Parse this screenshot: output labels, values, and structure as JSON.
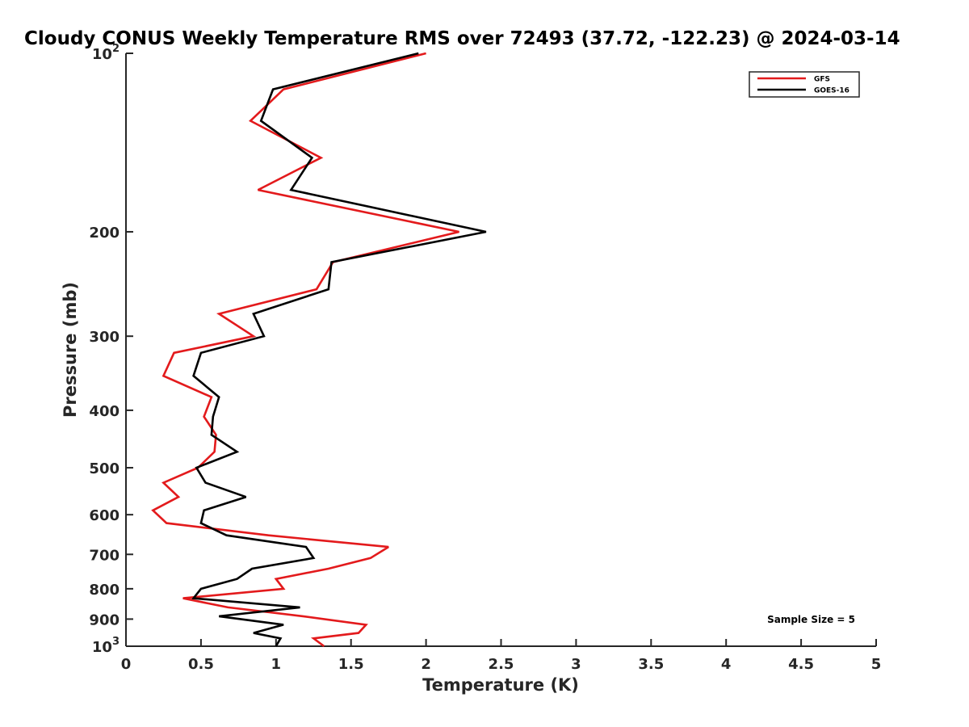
{
  "chart_data": {
    "type": "line",
    "title": "Cloudy CONUS Weekly Temperature RMS over 72493 (37.72, -122.23) @ 2024-03-14",
    "xlabel": "Temperature (K)",
    "ylabel": "Pressure (mb)",
    "xlim": [
      0,
      5
    ],
    "ylim": [
      100,
      1000
    ],
    "y_scale": "log",
    "y_reversed": true,
    "grid": false,
    "legend_position": "top-right",
    "x_ticks": [
      0,
      0.5,
      1,
      1.5,
      2,
      2.5,
      3,
      3.5,
      4,
      4.5,
      5
    ],
    "x_tick_labels": [
      "0",
      "0.5",
      "1",
      "1.5",
      "2",
      "2.5",
      "3",
      "3.5",
      "4",
      "4.5",
      "5"
    ],
    "y_ticks": [
      100,
      200,
      300,
      400,
      500,
      600,
      700,
      800,
      900,
      1000
    ],
    "y_tick_labels": [
      {
        "base": "10",
        "sup": "2"
      },
      {
        "base": "200",
        "sup": ""
      },
      {
        "base": "300",
        "sup": ""
      },
      {
        "base": "400",
        "sup": ""
      },
      {
        "base": "500",
        "sup": ""
      },
      {
        "base": "600",
        "sup": ""
      },
      {
        "base": "700",
        "sup": ""
      },
      {
        "base": "800",
        "sup": ""
      },
      {
        "base": "900",
        "sup": ""
      },
      {
        "base": "10",
        "sup": "3"
      }
    ],
    "series": [
      {
        "name": "GFS",
        "color": "#e31a1c",
        "pressure": [
          100,
          115,
          130,
          150,
          170,
          200,
          225,
          250,
          275,
          300,
          320,
          350,
          380,
          410,
          440,
          470,
          500,
          530,
          560,
          590,
          620,
          650,
          680,
          710,
          740,
          770,
          800,
          830,
          860,
          890,
          920,
          950,
          970,
          1000
        ],
        "temperature": [
          2.0,
          1.05,
          0.83,
          1.3,
          0.88,
          2.22,
          1.38,
          1.27,
          0.62,
          0.85,
          0.32,
          0.25,
          0.57,
          0.52,
          0.6,
          0.59,
          0.48,
          0.25,
          0.35,
          0.18,
          0.27,
          0.95,
          1.75,
          1.63,
          1.35,
          1.0,
          1.05,
          0.38,
          0.68,
          1.18,
          1.6,
          1.55,
          1.25,
          1.32
        ]
      },
      {
        "name": "GOES-16",
        "color": "#000000",
        "pressure": [
          100,
          115,
          130,
          150,
          170,
          200,
          225,
          250,
          275,
          300,
          320,
          350,
          380,
          410,
          440,
          470,
          500,
          530,
          560,
          590,
          620,
          650,
          680,
          710,
          740,
          770,
          800,
          830,
          860,
          890,
          920,
          950,
          970,
          1000
        ],
        "temperature": [
          1.95,
          0.98,
          0.9,
          1.24,
          1.1,
          2.4,
          1.37,
          1.35,
          0.85,
          0.92,
          0.5,
          0.45,
          0.62,
          0.58,
          0.57,
          0.74,
          0.47,
          0.53,
          0.8,
          0.52,
          0.5,
          0.67,
          1.2,
          1.25,
          0.84,
          0.74,
          0.5,
          0.45,
          1.16,
          0.62,
          1.05,
          0.85,
          1.03,
          1.0
        ]
      }
    ],
    "annotations": [
      {
        "text": "Sample Size = 5",
        "position": "bottom-right"
      }
    ]
  }
}
